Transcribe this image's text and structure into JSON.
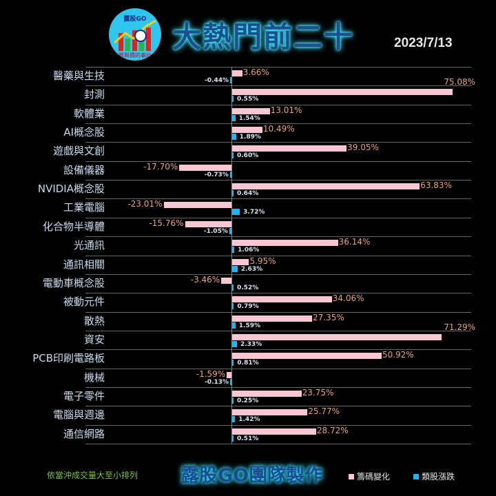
{
  "header": {
    "logo_top": "露股GO",
    "logo_bottom": "跟與價的事炒",
    "title": "大熱門前二十",
    "date": "2023/7/13"
  },
  "footer": {
    "sort_note": "依當沖成交量大至小排列",
    "team": "露股GO團隊製作",
    "legend": [
      {
        "label": "籌碼變化",
        "color": "#f9c6d4"
      },
      {
        "label": "類股漲跌",
        "color": "#1db6ee"
      }
    ]
  },
  "chart_data": {
    "type": "bar",
    "orientation": "horizontal",
    "title": "大熱門前二十",
    "subtitle": "2023/7/13",
    "categories": [
      "醫藥與生技",
      "封測",
      "軟體業",
      "AI概念股",
      "遊戲與文創",
      "設備儀器",
      "NVIDIA概念股",
      "工業電腦",
      "化合物半導體",
      "光通訊",
      "通訊相關",
      "電動車概念股",
      "被動元件",
      "散熱",
      "資安",
      "PCB印刷電路板",
      "機械",
      "電子零件",
      "電腦與週邊",
      "通信網路"
    ],
    "series": [
      {
        "name": "籌碼變化",
        "color": "#f9c6d4",
        "values": [
          3.66,
          75.08,
          13.01,
          10.49,
          39.05,
          -17.7,
          63.83,
          -23.01,
          -15.76,
          36.14,
          5.95,
          -3.46,
          34.06,
          27.35,
          71.29,
          50.92,
          -1.59,
          23.75,
          25.77,
          28.72
        ],
        "labels": [
          "3.66%",
          "75.08%",
          "13.01%",
          "10.49%",
          "39.05%",
          "-17.70%",
          "63.83%",
          "-23.01%",
          "-15.76%",
          "36.14%",
          "5.95%",
          "-3.46%",
          "34.06%",
          "27.35%",
          "71.29%",
          "50.92%",
          "-1.59%",
          "23.75%",
          "25.77%",
          "28.72%"
        ]
      },
      {
        "name": "類股漲跌",
        "color": "#1db6ee",
        "values": [
          -0.44,
          0.55,
          1.54,
          1.89,
          0.6,
          -0.73,
          0.64,
          3.72,
          -1.05,
          1.06,
          2.63,
          0.52,
          0.79,
          1.59,
          2.33,
          0.81,
          -0.13,
          0.25,
          1.42,
          0.51
        ],
        "labels": [
          "-0.44%",
          "0.55%",
          "1.54%",
          "1.89%",
          "0.60%",
          "-0.73%",
          "0.64%",
          "3.72%",
          "-1.05%",
          "1.06%",
          "2.63%",
          "0.52%",
          "0.79%",
          "1.59%",
          "2.33%",
          "0.81%",
          "-0.13%",
          "0.25%",
          "1.42%",
          "0.51%"
        ]
      }
    ],
    "xlabel": "",
    "ylabel": "",
    "grid": "horizontal separators",
    "legend_position": "bottom"
  }
}
